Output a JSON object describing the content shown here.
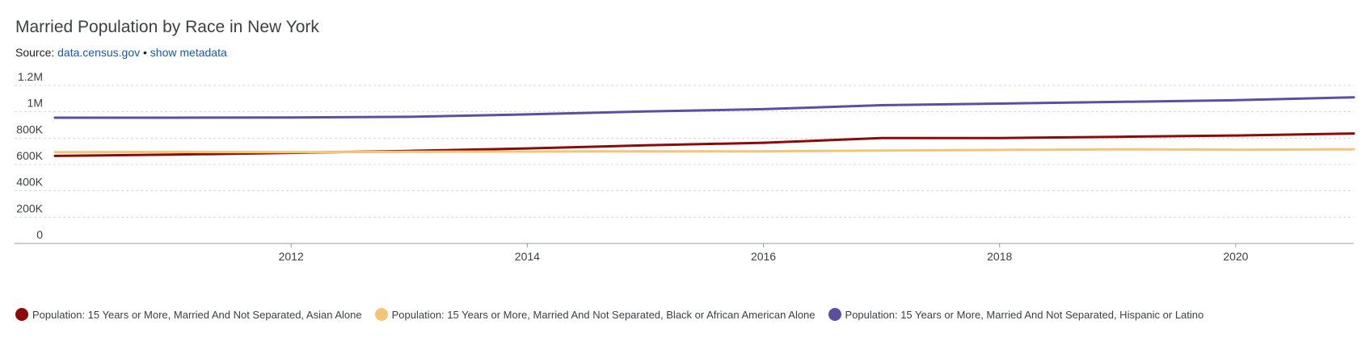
{
  "header": {
    "title": "Married Population by Race in New York",
    "source_label": "Source:",
    "source_link": "data.census.gov",
    "separator": "•",
    "metadata_link": "show metadata"
  },
  "chart_data": {
    "type": "line",
    "title": "Married Population by Race in New York",
    "xlabel": "",
    "ylabel": "",
    "x": [
      2010,
      2011,
      2012,
      2013,
      2014,
      2015,
      2016,
      2017,
      2018,
      2019,
      2020,
      2021
    ],
    "x_ticks": [
      2012,
      2014,
      2016,
      2018,
      2020
    ],
    "x_tick_labels": [
      "2012",
      "2014",
      "2016",
      "2018",
      "2020"
    ],
    "y_ticks": [
      0,
      200000,
      400000,
      600000,
      800000,
      1000000,
      1200000
    ],
    "y_tick_labels": [
      "0",
      "200K",
      "400K",
      "600K",
      "800K",
      "1M",
      "1.2M"
    ],
    "ylim": [
      0,
      1200000
    ],
    "xlim": [
      2010,
      2021
    ],
    "grid": true,
    "legend_position": "bottom",
    "series": [
      {
        "name": "Population: 15 Years or More, Married And Not Separated, Asian Alone",
        "color": "#8b0a0a",
        "values": [
          665000,
          675000,
          688000,
          703000,
          722000,
          745000,
          765000,
          800000,
          800000,
          810000,
          820000,
          835000
        ]
      },
      {
        "name": "Population: 15 Years or More, Married And Not Separated, Black or African American Alone",
        "color": "#f3c57a",
        "values": [
          693000,
          695000,
          693000,
          697000,
          698000,
          700000,
          700000,
          705000,
          710000,
          715000,
          712000,
          715000
        ]
      },
      {
        "name": "Population: 15 Years or More, Married And Not Separated, Hispanic or Latino",
        "color": "#5d4fa0",
        "values": [
          955000,
          955000,
          957000,
          962000,
          980000,
          1003000,
          1020000,
          1050000,
          1062000,
          1075000,
          1088000,
          1110000
        ]
      }
    ]
  }
}
